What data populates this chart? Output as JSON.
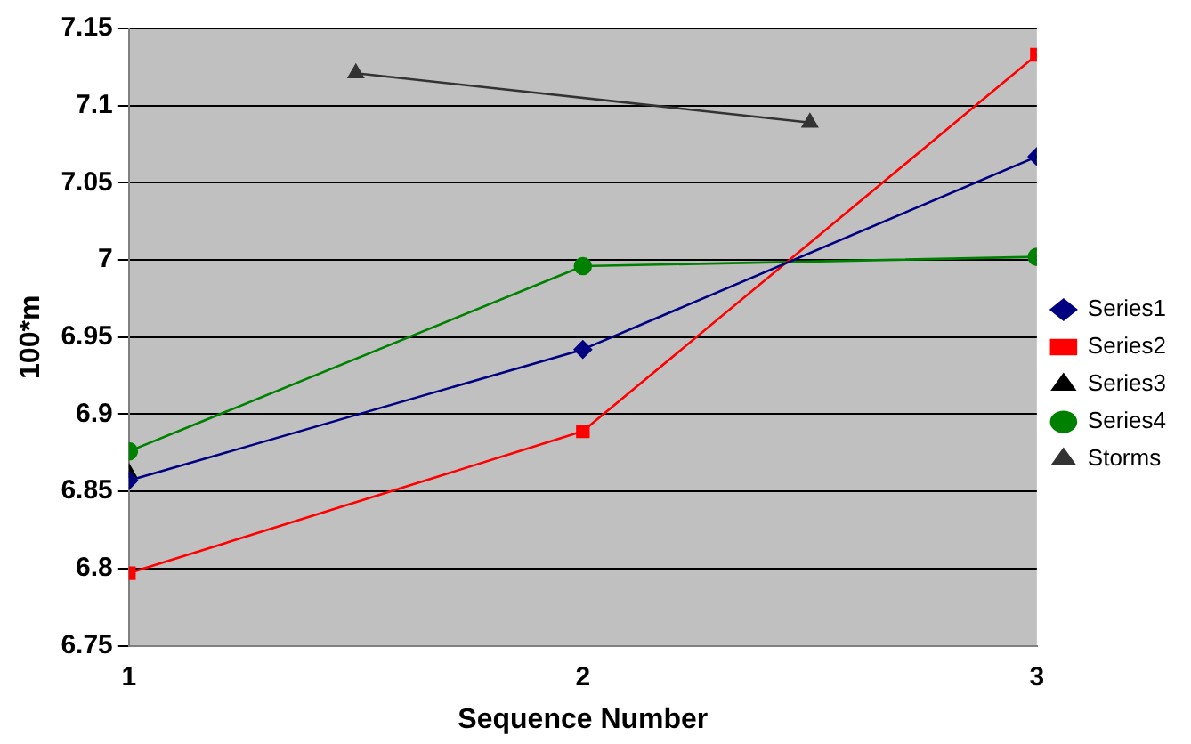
{
  "chart_data": {
    "type": "line",
    "xlabel": "Sequence Number",
    "ylabel": "100*m",
    "xlim": [
      1,
      3
    ],
    "xticks": [
      1,
      2,
      3
    ],
    "ylim": [
      6.75,
      7.15
    ],
    "yticks": [
      6.75,
      {
        "value": 6.8,
        "label": "6.8"
      },
      6.85,
      {
        "value": 6.9,
        "label": "6.9"
      },
      6.95,
      {
        "value": 7,
        "label": "7"
      },
      7.05,
      {
        "value": 7.1,
        "label": "7.1"
      },
      7.15
    ],
    "grid": "y",
    "legend": "right",
    "series": [
      {
        "name": "Series1",
        "color": "#000080",
        "marker": "diamond",
        "x": [
          1,
          2,
          3
        ],
        "values": [
          6.857,
          6.942,
          7.067
        ]
      },
      {
        "name": "Series2",
        "color": "#ff0000",
        "marker": "square",
        "x": [
          1,
          2,
          3
        ],
        "values": [
          6.797,
          6.889,
          7.133
        ]
      },
      {
        "name": "Series3",
        "color": "#000000",
        "marker": "triangle",
        "x": [
          1
        ],
        "values": [
          6.862
        ]
      },
      {
        "name": "Series4",
        "color": "#008000",
        "marker": "circle",
        "x": [
          1,
          2,
          3
        ],
        "values": [
          6.876,
          6.996,
          7.002
        ]
      },
      {
        "name": "Storms",
        "color": "#333333",
        "marker": "triangle",
        "x": [
          1.5,
          2.5
        ],
        "values": [
          7.121,
          7.089
        ]
      }
    ]
  }
}
